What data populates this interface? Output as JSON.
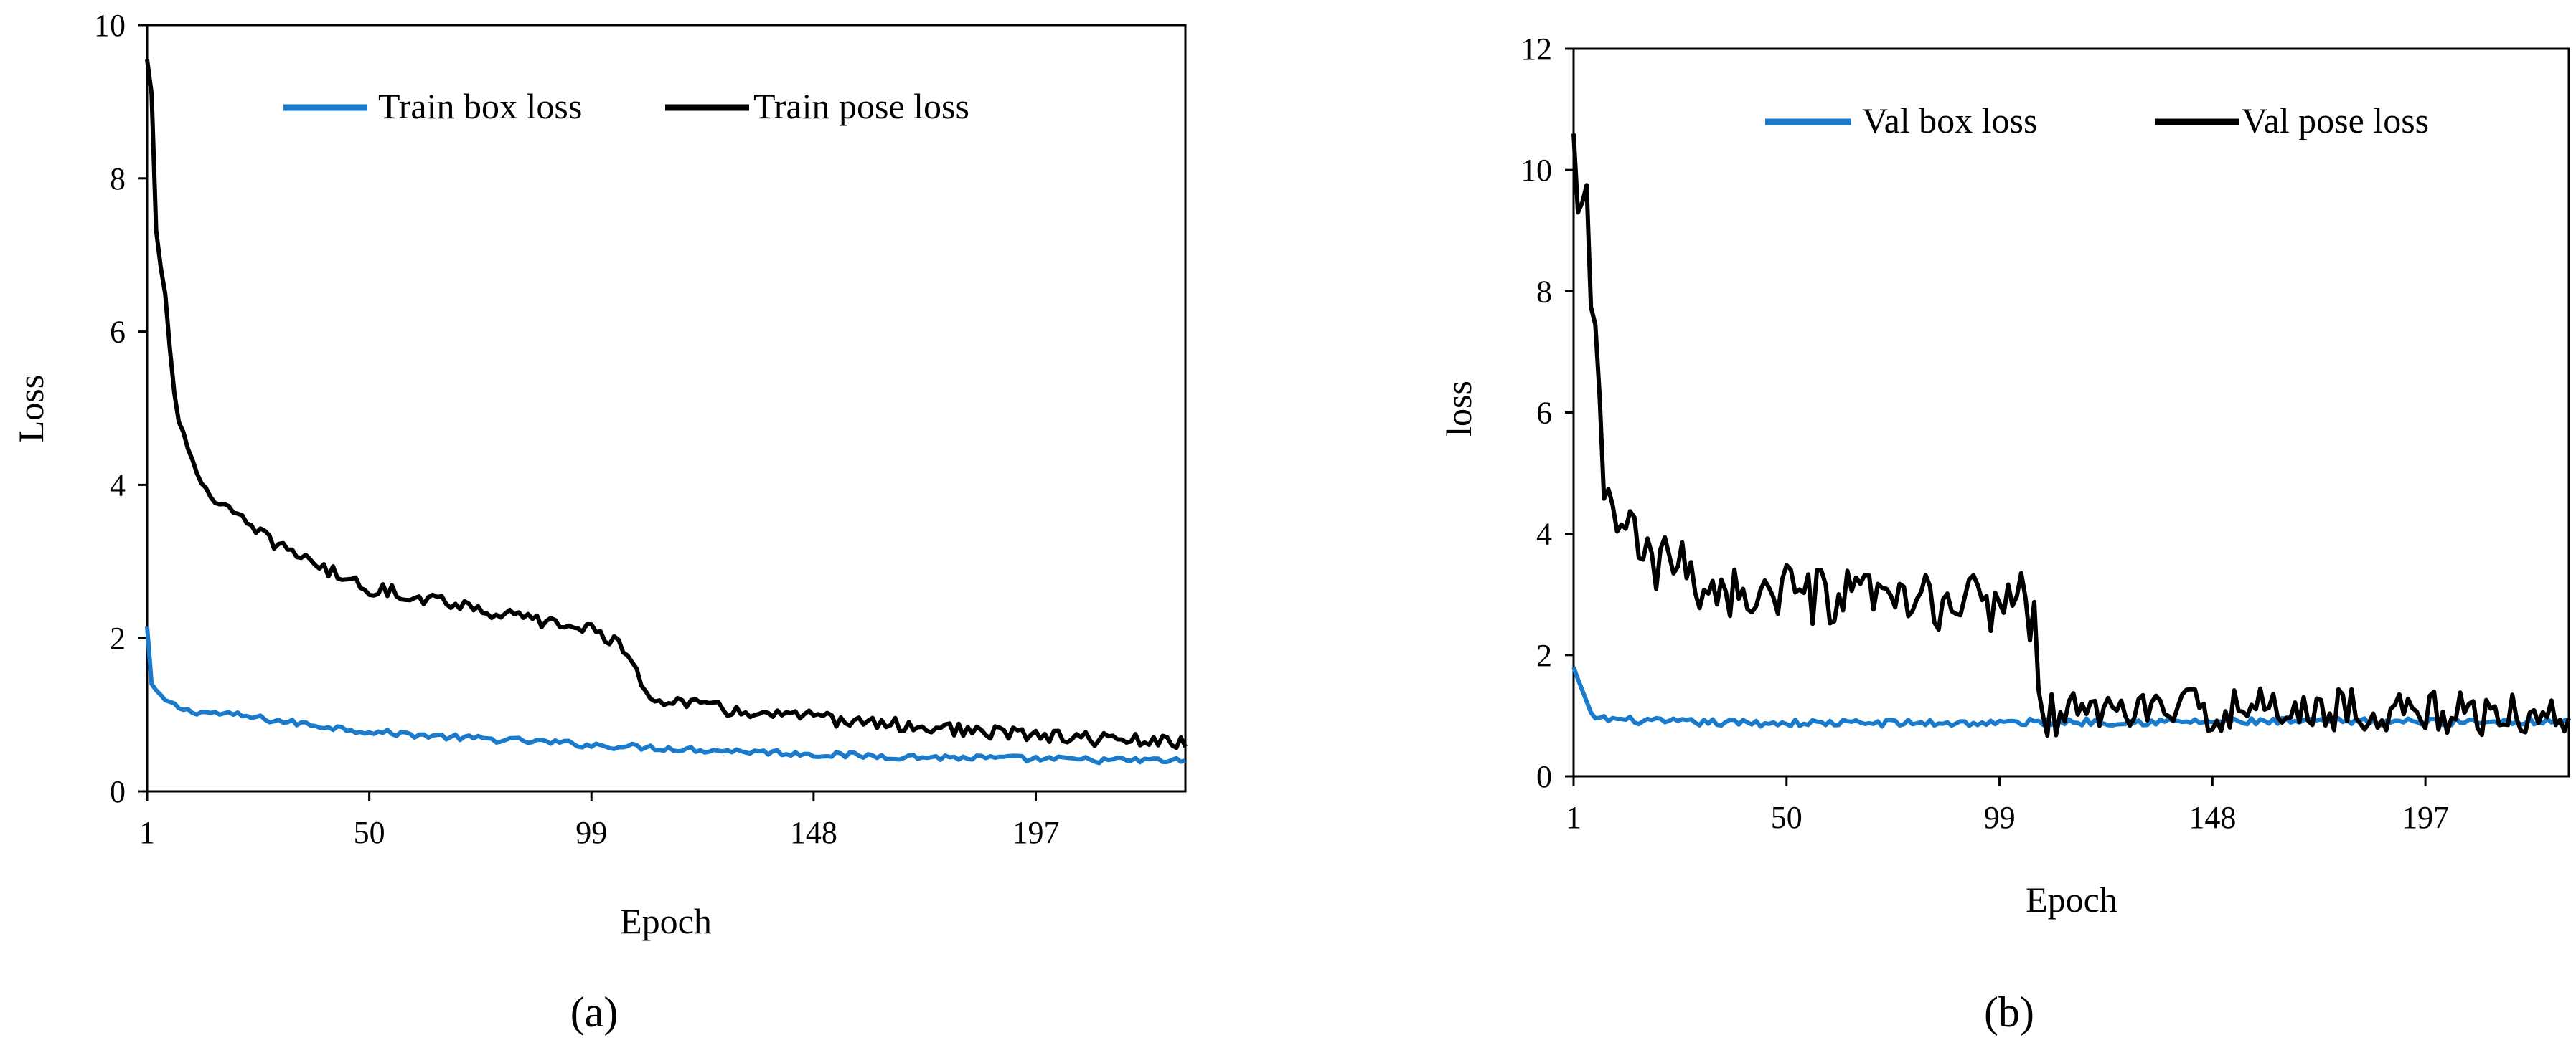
{
  "colors": {
    "box": "#1a7acb",
    "pose": "#000000"
  },
  "chart_data": [
    {
      "type": "line",
      "panel_label": "(a)",
      "xlabel": "Epoch",
      "ylabel": "Loss",
      "xlim": [
        1,
        230
      ],
      "ylim": [
        0,
        10
      ],
      "xticks": [
        1,
        50,
        99,
        148,
        197
      ],
      "yticks": [
        0,
        2,
        4,
        6,
        8,
        10
      ],
      "legend_position": "top-center",
      "grid": false,
      "series": [
        {
          "name": "Train box loss",
          "color": "#1a7acb",
          "keyframes": [
            [
              1,
              2.15
            ],
            [
              2,
              1.4
            ],
            [
              4,
              1.22
            ],
            [
              7,
              1.12
            ],
            [
              10,
              1.05
            ],
            [
              20,
              1.0
            ],
            [
              30,
              0.92
            ],
            [
              40,
              0.85
            ],
            [
              50,
              0.78
            ],
            [
              60,
              0.74
            ],
            [
              70,
              0.7
            ],
            [
              80,
              0.67
            ],
            [
              90,
              0.64
            ],
            [
              100,
              0.6
            ],
            [
              110,
              0.58
            ],
            [
              120,
              0.55
            ],
            [
              135,
              0.52
            ],
            [
              150,
              0.48
            ],
            [
              170,
              0.45
            ],
            [
              190,
              0.43
            ],
            [
              210,
              0.41
            ],
            [
              230,
              0.4
            ]
          ],
          "noise": 0.04
        },
        {
          "name": "Train pose loss",
          "color": "#000000",
          "keyframes": [
            [
              1,
              9.55
            ],
            [
              2,
              9.1
            ],
            [
              3,
              7.3
            ],
            [
              5,
              6.5
            ],
            [
              7,
              5.2
            ],
            [
              9,
              4.6
            ],
            [
              12,
              4.1
            ],
            [
              15,
              3.9
            ],
            [
              20,
              3.6
            ],
            [
              25,
              3.4
            ],
            [
              30,
              3.2
            ],
            [
              35,
              3.1
            ],
            [
              40,
              2.9
            ],
            [
              50,
              2.65
            ],
            [
              60,
              2.55
            ],
            [
              70,
              2.45
            ],
            [
              80,
              2.3
            ],
            [
              90,
              2.2
            ],
            [
              100,
              2.1
            ],
            [
              105,
              1.95
            ],
            [
              108,
              1.6
            ],
            [
              112,
              1.25
            ],
            [
              120,
              1.15
            ],
            [
              130,
              1.05
            ],
            [
              140,
              1.0
            ],
            [
              150,
              0.95
            ],
            [
              160,
              0.9
            ],
            [
              170,
              0.85
            ],
            [
              180,
              0.8
            ],
            [
              190,
              0.75
            ],
            [
              200,
              0.72
            ],
            [
              210,
              0.68
            ],
            [
              220,
              0.66
            ],
            [
              230,
              0.62
            ]
          ],
          "noise": 0.09
        }
      ]
    },
    {
      "type": "line",
      "panel_label": "(b)",
      "xlabel": "Epoch",
      "ylabel": "loss",
      "xlim": [
        1,
        230
      ],
      "ylim": [
        0,
        12
      ],
      "xticks": [
        1,
        50,
        99,
        148,
        197
      ],
      "yticks": [
        0,
        2,
        4,
        6,
        8,
        10,
        12
      ],
      "legend_position": "top-center",
      "grid": false,
      "series": [
        {
          "name": "Val box loss",
          "color": "#1a7acb",
          "keyframes": [
            [
              1,
              1.8
            ],
            [
              3,
              1.4
            ],
            [
              5,
              1.0
            ],
            [
              8,
              0.95
            ],
            [
              20,
              0.9
            ],
            [
              40,
              0.88
            ],
            [
              60,
              0.88
            ],
            [
              100,
              0.88
            ],
            [
              110,
              0.9
            ],
            [
              150,
              0.9
            ],
            [
              200,
              0.9
            ],
            [
              230,
              0.92
            ]
          ],
          "noise": 0.06
        },
        {
          "name": "Val pose loss",
          "color": "#000000",
          "keyframes": [
            [
              1,
              10.6
            ],
            [
              2,
              9.3
            ],
            [
              4,
              9.3
            ],
            [
              5,
              7.4
            ],
            [
              6,
              7.2
            ],
            [
              7,
              6.6
            ],
            [
              8,
              4.5
            ],
            [
              12,
              4.3
            ],
            [
              16,
              3.7
            ],
            [
              20,
              3.4
            ],
            [
              25,
              3.6
            ],
            [
              30,
              3.2
            ],
            [
              35,
              3.1
            ],
            [
              40,
              3.0
            ],
            [
              50,
              3.0
            ],
            [
              60,
              2.9
            ],
            [
              70,
              2.9
            ],
            [
              80,
              2.85
            ],
            [
              90,
              2.85
            ],
            [
              100,
              2.9
            ],
            [
              105,
              2.95
            ],
            [
              107,
              2.5
            ],
            [
              108,
              1.3
            ],
            [
              110,
              1.0
            ],
            [
              120,
              1.1
            ],
            [
              140,
              1.1
            ],
            [
              160,
              1.1
            ],
            [
              180,
              1.1
            ],
            [
              200,
              1.05
            ],
            [
              220,
              1.0
            ],
            [
              230,
              1.0
            ]
          ],
          "noise": 0.35
        }
      ]
    }
  ]
}
